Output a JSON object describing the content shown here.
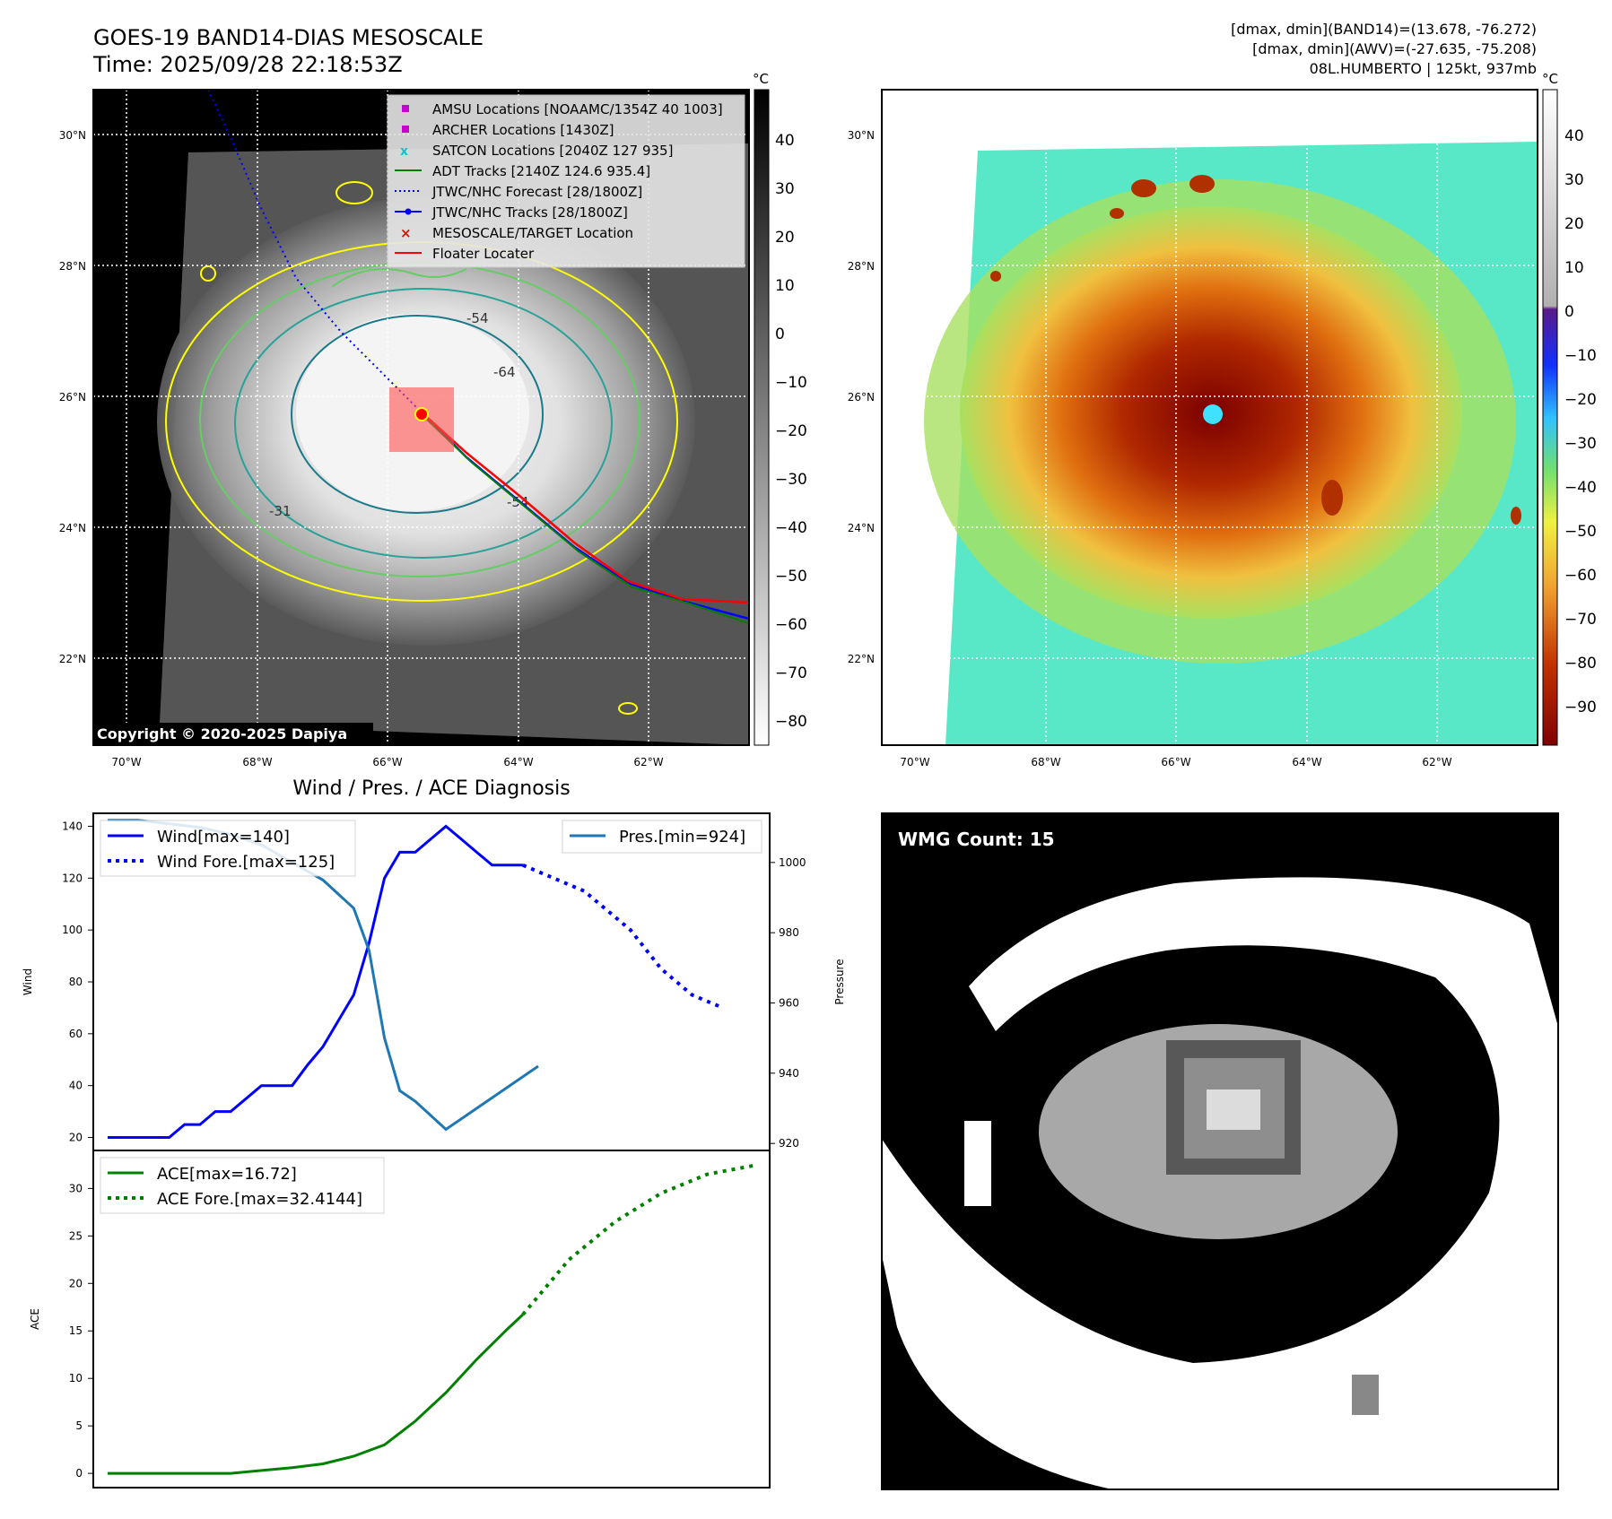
{
  "header": {
    "title": "GOES-19 BAND14-DIAS MESOSCALE",
    "time": "Time: 2025/09/28 22:18:53Z",
    "stats_line1": "[dmax, dmin](BAND14)=(13.678, -76.272)",
    "stats_line2": "[dmax, dmin](AWV)=(-27.635, -75.208)",
    "storm_line": "08L.HUMBERTO | 125kt, 937mb"
  },
  "map_panel": {
    "lat_labels": [
      "30°N",
      "28°N",
      "26°N",
      "24°N",
      "22°N"
    ],
    "lon_labels": [
      "70°W",
      "68°W",
      "66°W",
      "64°W",
      "62°W"
    ],
    "legend": [
      {
        "label": "AMSU Locations [NOAAMC/1354Z 40 1003]",
        "color": "#cc00cc"
      },
      {
        "label": "ARCHER Locations [1430Z]",
        "color": "#cc00cc"
      },
      {
        "label": "SATCON Locations [2040Z 127 935]",
        "color": "#17becf"
      },
      {
        "label": "ADT Tracks [2140Z 124.6 935.4]",
        "color": "#008000"
      },
      {
        "label": "JTWC/NHC Forecast [28/1800Z]",
        "color": "#0000ff"
      },
      {
        "label": "JTWC/NHC Tracks [28/1800Z]",
        "color": "#0000ff"
      },
      {
        "label": "MESOSCALE/TARGET Location",
        "color": "#ff0000"
      },
      {
        "label": "Floater Locater",
        "color": "#ff0000"
      }
    ],
    "contour_labels": [
      "-54",
      "-64",
      "-31",
      "-54"
    ],
    "copyright": "Copyright © 2020-2025 Dapiya",
    "colorbar_unit": "°C",
    "colorbar_ticks": [
      "40",
      "30",
      "20",
      "10",
      "0",
      "−10",
      "−20",
      "−30",
      "−40",
      "−50",
      "−60",
      "−70",
      "−80"
    ]
  },
  "color_panel": {
    "colorbar_unit": "°C",
    "colorbar_ticks": [
      "40",
      "30",
      "20",
      "10",
      "0",
      "−10",
      "−20",
      "−30",
      "−40",
      "−50",
      "−60",
      "−70",
      "−80",
      "−90"
    ]
  },
  "diagnosis_panel": {
    "title": "Wind / Pres. / ACE Diagnosis",
    "wind_ylabel": "Wind",
    "pressure_ylabel": "Pressure",
    "ace_ylabel": "ACE",
    "legend_wind": "Wind[max=140]",
    "legend_wind_fore": "Wind Fore.[max=125]",
    "legend_pres": "Pres.[min=924]",
    "legend_ace": "ACE[max=16.72]",
    "legend_ace_fore": "ACE Fore.[max=32.4144]"
  },
  "wmg_panel": {
    "label": "WMG Count: 15"
  },
  "chart_data": [
    {
      "type": "line",
      "title": "Wind / Pres. / ACE Diagnosis",
      "ylabel": "Wind",
      "y2label": "Pressure",
      "ylim": [
        15,
        145
      ],
      "y2lim": [
        918,
        1014
      ],
      "xlim": [
        0,
        42
      ],
      "series": [
        {
          "name": "Wind[max=140]",
          "axis": "left",
          "color": "#0000ff",
          "style": "solid",
          "x": [
            0,
            1,
            2,
            3,
            4,
            5,
            6,
            7,
            8,
            9,
            10,
            11,
            12,
            13,
            14,
            15,
            16,
            17,
            18,
            19,
            20,
            21,
            22,
            23,
            24,
            25,
            26,
            27
          ],
          "y": [
            20,
            20,
            20,
            20,
            20,
            25,
            25,
            30,
            30,
            35,
            40,
            40,
            40,
            48,
            55,
            65,
            75,
            95,
            120,
            130,
            130,
            135,
            140,
            135,
            130,
            125,
            125,
            125
          ]
        },
        {
          "name": "Wind Fore.[max=125]",
          "axis": "left",
          "color": "#0000ff",
          "style": "dotted",
          "x": [
            27,
            31,
            34,
            36,
            38,
            40
          ],
          "y": [
            125,
            115,
            100,
            85,
            75,
            70
          ]
        },
        {
          "name": "Pres.[min=924]",
          "axis": "right",
          "color": "#1f77b4",
          "style": "solid",
          "x": [
            0,
            2,
            4,
            6,
            8,
            10,
            12,
            14,
            16,
            17,
            18,
            19,
            20,
            22,
            24,
            26,
            28
          ],
          "y": [
            1012,
            1012,
            1011,
            1010,
            1008,
            1005,
            1000,
            995,
            987,
            975,
            950,
            935,
            932,
            924,
            930,
            936,
            942
          ]
        },
        {
          "name": "ACE[max=16.72]",
          "axis": "ace",
          "color": "#008000",
          "style": "solid",
          "x": [
            0,
            2,
            4,
            6,
            8,
            10,
            12,
            14,
            16,
            18,
            20,
            22,
            24,
            26,
            27
          ],
          "y": [
            0,
            0,
            0,
            0,
            0,
            0.3,
            0.6,
            1.0,
            1.8,
            3.0,
            5.5,
            8.5,
            12.0,
            15.2,
            16.72
          ]
        },
        {
          "name": "ACE Fore.[max=32.4144]",
          "axis": "ace",
          "color": "#008000",
          "style": "dotted",
          "x": [
            27,
            30,
            33,
            36,
            39,
            42
          ],
          "y": [
            16.72,
            22.5,
            26.5,
            29.5,
            31.5,
            32.4
          ]
        }
      ],
      "ace_ylim": [
        -1.5,
        34
      ]
    }
  ]
}
